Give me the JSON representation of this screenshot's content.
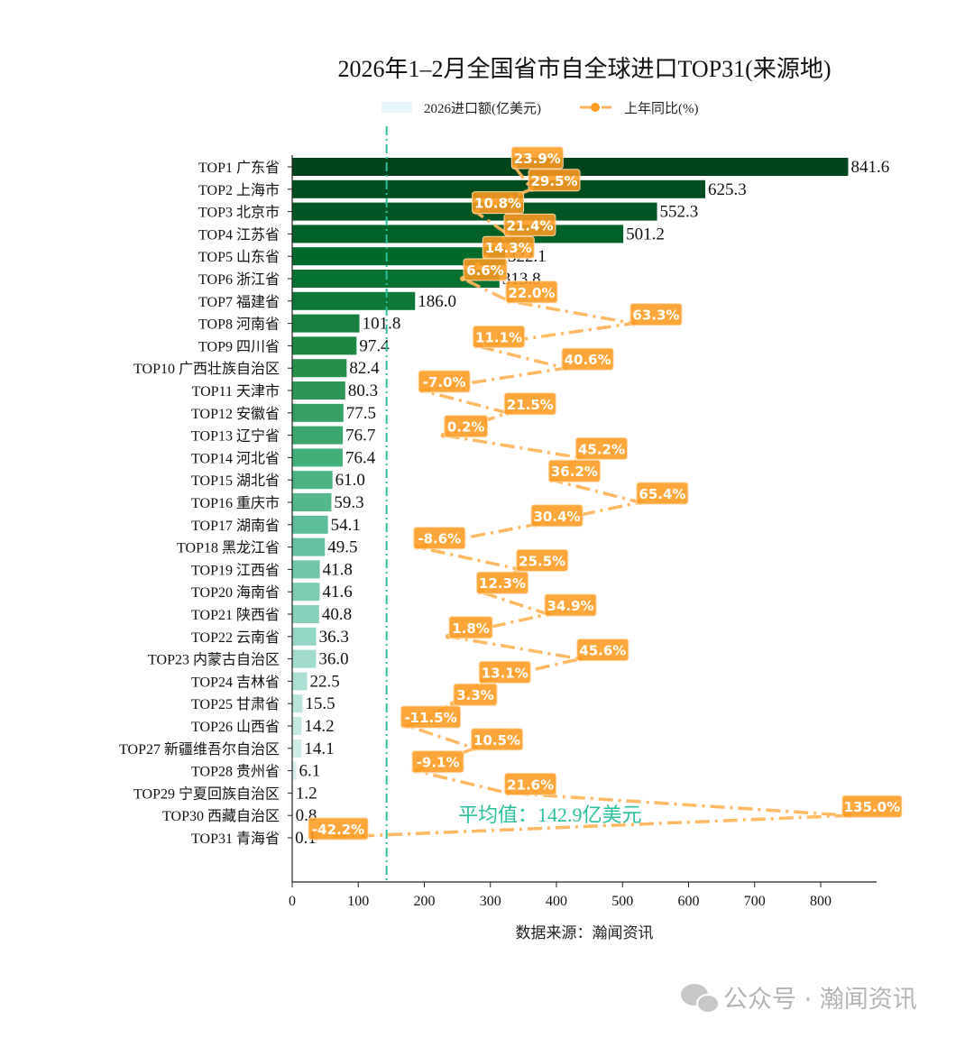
{
  "chart_data": {
    "type": "bar",
    "orientation": "horizontal",
    "title": "2026年1–2月全国省市自全球进口TOP31(来源地)",
    "categories": [
      "TOP1 广东省",
      "TOP2 上海市",
      "TOP3 北京市",
      "TOP4 江苏省",
      "TOP5 山东省",
      "TOP6 浙江省",
      "TOP7 福建省",
      "TOP8 河南省",
      "TOP9 四川省",
      "TOP10 广西壮族自治区",
      "TOP11 天津市",
      "TOP12 安徽省",
      "TOP13 辽宁省",
      "TOP14 河北省",
      "TOP15 湖北省",
      "TOP16 重庆市",
      "TOP17 湖南省",
      "TOP18 黑龙江省",
      "TOP19 江西省",
      "TOP20 海南省",
      "TOP21 陕西省",
      "TOP22 云南省",
      "TOP23 内蒙古自治区",
      "TOP24 吉林省",
      "TOP25 甘肃省",
      "TOP26 山西省",
      "TOP27 新疆维吾尔自治区",
      "TOP28 贵州省",
      "TOP29 宁夏回族自治区",
      "TOP30 西藏自治区",
      "TOP31 青海省"
    ],
    "series": [
      {
        "name": "2026进口额(亿美元)",
        "type": "bar",
        "values": [
          841.6,
          625.3,
          552.3,
          501.2,
          322.1,
          313.8,
          186.0,
          101.8,
          97.4,
          82.4,
          80.3,
          77.5,
          76.7,
          76.4,
          61.0,
          59.3,
          54.1,
          49.5,
          41.8,
          41.6,
          40.8,
          36.3,
          36.0,
          22.5,
          15.5,
          14.2,
          14.1,
          6.1,
          1.2,
          0.8,
          0.1
        ]
      },
      {
        "name": "上年同比(%)",
        "type": "line",
        "values": [
          23.9,
          29.5,
          10.8,
          21.4,
          14.3,
          6.6,
          22.0,
          63.3,
          11.1,
          40.6,
          -7.0,
          21.5,
          0.2,
          45.2,
          36.2,
          65.4,
          30.4,
          -8.6,
          25.5,
          12.3,
          34.9,
          1.8,
          45.6,
          13.1,
          3.3,
          -11.5,
          10.5,
          -9.1,
          21.6,
          135.0,
          -42.2
        ]
      }
    ],
    "xlim": [
      0,
      880
    ],
    "xticks": [
      0,
      100,
      200,
      300,
      400,
      500,
      600,
      700,
      800
    ],
    "xlabel": "数据来源：瀚闻资讯",
    "legend_position": "top",
    "average": {
      "value": 142.9,
      "label": "平均值：142.9亿美元"
    },
    "colors": {
      "bar_dark": "#00441b",
      "bar_light": "#e5f5f9",
      "line": "#ffb55a",
      "label_bg": "#ff9a1f",
      "average": "#2bbf9b"
    },
    "grid": false
  },
  "watermark": "公众号 · 瀚闻资讯"
}
